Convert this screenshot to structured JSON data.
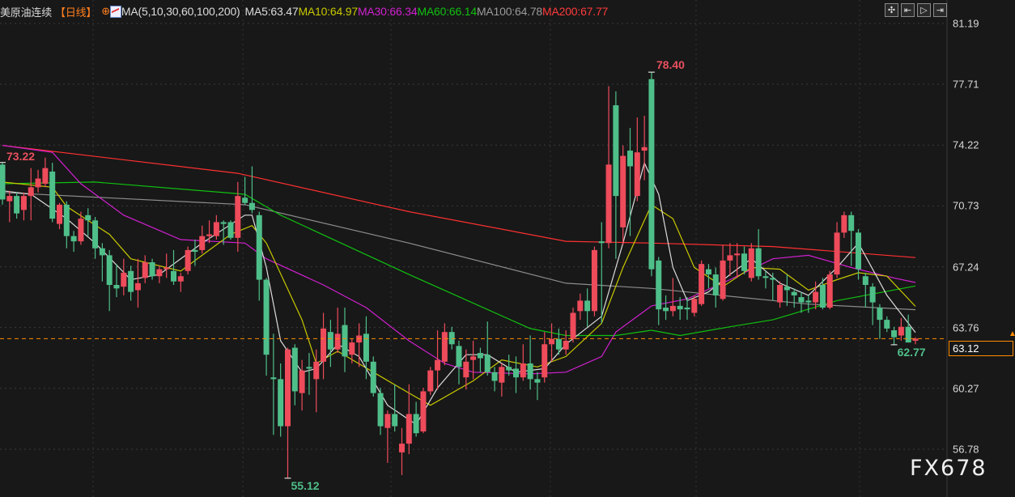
{
  "header": {
    "symbol": "美原油连续",
    "period": "【日线】",
    "crosshair_icon": "circle-plus-icon",
    "ma_icon": "ma-chart-icon",
    "ma_params": "MA(5,10,30,60,100,200)",
    "ma_values": [
      {
        "label": "MA5:63.47",
        "color": "#dcdcdc"
      },
      {
        "label": "MA10:64.97",
        "color": "#c8c800"
      },
      {
        "label": "MA30:66.34",
        "color": "#d020d0"
      },
      {
        "label": "MA60:66.14",
        "color": "#10c010"
      },
      {
        "label": "MA100:64.78",
        "color": "#9a9a9a"
      },
      {
        "label": "MA200:67.77",
        "color": "#ff3a3a"
      }
    ]
  },
  "toolbar": [
    {
      "name": "crosshair-icon",
      "glyph": "✣"
    },
    {
      "name": "zoom-range-icon",
      "glyph": "⇤"
    },
    {
      "name": "play-icon",
      "glyph": "▷"
    },
    {
      "name": "exit-icon",
      "glyph": "⇥"
    }
  ],
  "watermark": "FX678",
  "colors": {
    "up": "#ee4b5b",
    "down": "#4fbf8a",
    "last_price": "#ff8c00",
    "background": "#181818"
  },
  "chart_data": {
    "type": "candlestick",
    "ylim": [
      56.78,
      81.19
    ],
    "y_ticks": [
      "81.19",
      "77.71",
      "74.22",
      "70.73",
      "67.24",
      "63.76",
      "60.27",
      "56.78"
    ],
    "last_price": "63.12",
    "annotations": [
      {
        "label": "73.22",
        "kind": "high",
        "candle": 0
      },
      {
        "label": "78.40",
        "kind": "high",
        "candle": 91
      },
      {
        "label": "55.12",
        "kind": "low",
        "candle": 40
      },
      {
        "label": "62.77",
        "kind": "low",
        "candle": 125
      }
    ],
    "ohlc": [
      [
        73.1,
        73.22,
        70.8,
        71.1
      ],
      [
        71.0,
        71.6,
        69.8,
        71.3
      ],
      [
        71.3,
        71.5,
        70.0,
        70.3
      ],
      [
        70.5,
        71.5,
        69.9,
        71.3
      ],
      [
        71.3,
        72.9,
        69.9,
        71.8
      ],
      [
        71.8,
        72.8,
        71.5,
        72.3
      ],
      [
        72.0,
        73.5,
        71.8,
        72.9
      ],
      [
        72.7,
        73.2,
        69.8,
        70.0
      ],
      [
        69.7,
        70.9,
        69.4,
        70.8
      ],
      [
        70.8,
        71.0,
        68.3,
        69.0
      ],
      [
        69.0,
        69.3,
        68.1,
        68.7
      ],
      [
        68.7,
        70.4,
        68.5,
        70.0
      ],
      [
        70.2,
        70.6,
        69.0,
        69.9
      ],
      [
        69.9,
        70.1,
        67.7,
        68.3
      ],
      [
        68.3,
        68.6,
        66.4,
        67.9
      ],
      [
        67.9,
        68.2,
        64.7,
        66.2
      ],
      [
        66.2,
        67.4,
        65.5,
        66.0
      ],
      [
        66.1,
        67.7,
        65.6,
        66.9
      ],
      [
        67.0,
        67.3,
        65.3,
        65.8
      ],
      [
        65.9,
        67.7,
        64.9,
        66.3
      ],
      [
        66.6,
        67.9,
        66.3,
        67.5
      ],
      [
        67.5,
        67.7,
        66.5,
        66.7
      ],
      [
        66.7,
        67.3,
        66.3,
        67.1
      ],
      [
        67.1,
        68.0,
        66.6,
        67.2
      ],
      [
        67.0,
        68.2,
        66.2,
        66.4
      ],
      [
        66.4,
        66.9,
        65.8,
        66.7
      ],
      [
        67.0,
        68.4,
        66.8,
        68.2
      ],
      [
        68.2,
        68.8,
        67.3,
        68.1
      ],
      [
        68.2,
        69.6,
        68.0,
        69.0
      ],
      [
        69.0,
        69.9,
        68.6,
        69.1
      ],
      [
        69.0,
        70.2,
        68.8,
        69.8
      ],
      [
        69.8,
        69.9,
        68.5,
        69.7
      ],
      [
        69.8,
        69.9,
        68.8,
        68.9
      ],
      [
        68.9,
        72.1,
        68.1,
        71.3
      ],
      [
        71.2,
        72.4,
        70.8,
        70.9
      ],
      [
        70.9,
        73.0,
        70.3,
        70.5
      ],
      [
        70.2,
        70.4,
        65.3,
        66.5
      ],
      [
        66.5,
        66.6,
        61.0,
        62.2
      ],
      [
        60.9,
        63.4,
        57.6,
        60.8
      ],
      [
        60.8,
        61.7,
        57.5,
        58.1
      ],
      [
        58.1,
        62.6,
        55.12,
        62.5
      ],
      [
        62.6,
        62.8,
        59.3,
        60.1
      ],
      [
        60.0,
        61.9,
        59.0,
        61.3
      ],
      [
        61.5,
        62.3,
        59.9,
        61.4
      ],
      [
        60.8,
        62.5,
        58.9,
        61.8
      ],
      [
        61.8,
        64.6,
        60.8,
        63.7
      ],
      [
        63.5,
        64.2,
        61.5,
        62.5
      ],
      [
        62.5,
        64.9,
        62.3,
        63.4
      ],
      [
        63.9,
        64.9,
        61.2,
        62.1
      ],
      [
        62.2,
        63.1,
        61.7,
        62.9
      ],
      [
        62.9,
        64.0,
        61.5,
        63.3
      ],
      [
        63.4,
        64.4,
        60.8,
        61.8
      ],
      [
        61.8,
        62.1,
        59.8,
        60.0
      ],
      [
        60.0,
        60.3,
        57.6,
        58.1
      ],
      [
        58.0,
        59.0,
        56.0,
        58.8
      ],
      [
        58.8,
        60.5,
        57.8,
        58.1
      ],
      [
        56.6,
        58.0,
        55.3,
        57.1
      ],
      [
        57.1,
        60.5,
        56.5,
        58.8
      ],
      [
        58.8,
        59.5,
        57.5,
        57.7
      ],
      [
        57.8,
        60.3,
        57.7,
        60.1
      ],
      [
        60.1,
        61.5,
        59.9,
        61.3
      ],
      [
        61.3,
        63.6,
        60.2,
        61.9
      ],
      [
        61.8,
        64.0,
        61.6,
        63.5
      ],
      [
        63.5,
        63.8,
        62.5,
        62.8
      ],
      [
        62.7,
        63.0,
        60.5,
        61.5
      ],
      [
        60.9,
        62.5,
        60.2,
        61.8
      ],
      [
        61.9,
        63.0,
        60.8,
        62.1
      ],
      [
        62.3,
        62.6,
        61.2,
        62.0
      ],
      [
        62.2,
        64.1,
        61.0,
        61.2
      ],
      [
        61.2,
        61.5,
        60.1,
        60.7
      ],
      [
        60.6,
        61.7,
        59.8,
        61.5
      ],
      [
        61.5,
        62.2,
        61.0,
        61.3
      ],
      [
        61.4,
        62.1,
        60.0,
        60.9
      ],
      [
        60.9,
        62.8,
        60.7,
        61.7
      ],
      [
        61.7,
        63.3,
        60.2,
        60.8
      ],
      [
        60.8,
        61.2,
        59.6,
        60.6
      ],
      [
        60.9,
        63.5,
        60.6,
        62.8
      ],
      [
        62.8,
        64.0,
        61.8,
        63.1
      ],
      [
        63.1,
        63.7,
        62.2,
        62.5
      ],
      [
        62.5,
        63.6,
        62.2,
        63.0
      ],
      [
        63.1,
        64.9,
        62.9,
        64.6
      ],
      [
        64.7,
        65.7,
        64.2,
        65.3
      ],
      [
        65.3,
        66.0,
        63.8,
        64.7
      ],
      [
        64.7,
        68.4,
        64.4,
        68.2
      ],
      [
        68.7,
        69.8,
        64.0,
        68.6
      ],
      [
        68.6,
        77.6,
        68.3,
        73.1
      ],
      [
        76.5,
        77.3,
        67.7,
        71.3
      ],
      [
        69.5,
        74.2,
        68.5,
        73.6
      ],
      [
        73.9,
        75.2,
        69.0,
        73.0
      ],
      [
        71.3,
        75.8,
        71.0,
        73.8
      ],
      [
        73.9,
        75.9,
        72.2,
        74.1
      ],
      [
        78.0,
        78.4,
        66.7,
        67.1
      ],
      [
        67.6,
        67.8,
        63.9,
        64.8
      ],
      [
        64.9,
        65.6,
        64.2,
        64.7
      ],
      [
        64.7,
        66.6,
        64.4,
        65.0
      ],
      [
        65.0,
        65.5,
        64.2,
        64.8
      ],
      [
        64.9,
        65.5,
        64.2,
        64.8
      ],
      [
        64.6,
        65.6,
        64.4,
        65.4
      ],
      [
        65.1,
        67.6,
        65.0,
        67.4
      ],
      [
        67.1,
        67.4,
        66.0,
        66.8
      ],
      [
        66.8,
        67.2,
        64.9,
        65.6
      ],
      [
        65.4,
        68.5,
        65.3,
        67.6
      ],
      [
        67.6,
        68.6,
        66.7,
        67.9
      ],
      [
        67.9,
        68.6,
        66.6,
        68.0
      ],
      [
        68.0,
        68.4,
        66.8,
        67.0
      ],
      [
        66.6,
        68.6,
        66.4,
        68.3
      ],
      [
        68.3,
        69.4,
        66.5,
        66.7
      ],
      [
        66.7,
        67.0,
        66.0,
        66.6
      ],
      [
        66.6,
        66.9,
        65.3,
        66.5
      ],
      [
        65.2,
        66.4,
        64.9,
        66.2
      ],
      [
        66.1,
        66.8,
        65.0,
        65.9
      ],
      [
        65.8,
        66.0,
        64.9,
        65.6
      ],
      [
        65.5,
        65.8,
        64.6,
        65.2
      ],
      [
        65.3,
        65.6,
        64.6,
        65.2
      ],
      [
        65.2,
        66.4,
        64.8,
        65.8
      ],
      [
        66.2,
        66.6,
        64.8,
        64.9
      ],
      [
        64.9,
        67.0,
        64.8,
        66.8
      ],
      [
        66.8,
        69.8,
        66.6,
        69.2
      ],
      [
        69.2,
        70.4,
        68.9,
        70.2
      ],
      [
        70.2,
        70.4,
        67.3,
        69.3
      ],
      [
        69.2,
        69.4,
        66.5,
        67.1
      ],
      [
        66.7,
        66.9,
        64.9,
        66.2
      ],
      [
        66.1,
        66.3,
        63.9,
        65.2
      ],
      [
        64.9,
        65.1,
        63.1,
        64.2
      ],
      [
        64.2,
        64.4,
        63.5,
        63.7
      ],
      [
        63.6,
        63.8,
        62.77,
        63.2
      ],
      [
        63.3,
        64.3,
        63.0,
        63.8
      ],
      [
        63.8,
        64.5,
        62.9,
        62.9
      ],
      [
        63.0,
        63.2,
        62.8,
        63.12
      ]
    ],
    "moving_averages": [
      {
        "name": "MA200",
        "color": "#ff3030",
        "points": [
          [
            0,
            74.2
          ],
          [
            33,
            72.6
          ],
          [
            57,
            70.4
          ],
          [
            79,
            68.7
          ],
          [
            91,
            68.6
          ],
          [
            108,
            68.4
          ],
          [
            128,
            67.77
          ]
        ]
      },
      {
        "name": "MA100",
        "color": "#8c8c8c",
        "points": [
          [
            0,
            71.5
          ],
          [
            34,
            70.8
          ],
          [
            57,
            68.6
          ],
          [
            79,
            66.3
          ],
          [
            91,
            66.0
          ],
          [
            113,
            65.1
          ],
          [
            128,
            64.78
          ]
        ]
      },
      {
        "name": "MA60",
        "color": "#10c010",
        "points": [
          [
            0,
            72.0
          ],
          [
            13,
            72.1
          ],
          [
            34,
            71.4
          ],
          [
            39,
            70.2
          ],
          [
            57,
            66.8
          ],
          [
            74,
            63.7
          ],
          [
            79,
            63.3
          ],
          [
            86,
            63.3
          ],
          [
            91,
            63.6
          ],
          [
            95,
            63.3
          ],
          [
            102,
            63.8
          ],
          [
            108,
            64.2
          ],
          [
            117,
            65.3
          ],
          [
            128,
            66.14
          ]
        ]
      },
      {
        "name": "MA30",
        "color": "#d020d0",
        "points": [
          [
            0,
            74.2
          ],
          [
            7,
            73.8
          ],
          [
            11,
            72.0
          ],
          [
            17,
            70.2
          ],
          [
            25,
            68.8
          ],
          [
            34,
            68.6
          ],
          [
            37,
            67.7
          ],
          [
            45,
            66.2
          ],
          [
            51,
            64.9
          ],
          [
            57,
            63.0
          ],
          [
            62,
            61.7
          ],
          [
            66,
            61.2
          ],
          [
            74,
            61.1
          ],
          [
            79,
            61.2
          ],
          [
            84,
            62.1
          ],
          [
            86,
            63.5
          ],
          [
            91,
            65.0
          ],
          [
            96,
            65.4
          ],
          [
            102,
            66.5
          ],
          [
            108,
            67.7
          ],
          [
            113,
            67.9
          ],
          [
            119,
            67.2
          ],
          [
            125,
            66.6
          ],
          [
            128,
            66.34
          ]
        ]
      },
      {
        "name": "MA10",
        "color": "#c8c800",
        "points": [
          [
            0,
            72.1
          ],
          [
            7,
            71.8
          ],
          [
            9,
            70.7
          ],
          [
            15,
            69.1
          ],
          [
            18,
            67.7
          ],
          [
            25,
            67.0
          ],
          [
            32,
            69.1
          ],
          [
            35,
            69.6
          ],
          [
            37,
            68.6
          ],
          [
            42,
            64.2
          ],
          [
            44,
            61.7
          ],
          [
            47,
            62.4
          ],
          [
            52,
            61.2
          ],
          [
            57,
            60.0
          ],
          [
            60,
            59.3
          ],
          [
            66,
            60.7
          ],
          [
            70,
            61.9
          ],
          [
            75,
            61.5
          ],
          [
            79,
            62.1
          ],
          [
            84,
            64.0
          ],
          [
            87,
            67.2
          ],
          [
            91,
            70.8
          ],
          [
            94,
            70.0
          ],
          [
            97,
            67.2
          ],
          [
            101,
            66.1
          ],
          [
            105,
            67.2
          ],
          [
            109,
            67.1
          ],
          [
            113,
            65.9
          ],
          [
            117,
            66.5
          ],
          [
            120,
            66.9
          ],
          [
            124,
            66.7
          ],
          [
            128,
            64.97
          ]
        ]
      },
      {
        "name": "MA5",
        "color": "#dcdcdc",
        "points": [
          [
            0,
            71.6
          ],
          [
            4,
            71.4
          ],
          [
            9,
            70.0
          ],
          [
            13,
            68.6
          ],
          [
            18,
            66.5
          ],
          [
            22,
            66.8
          ],
          [
            28,
            68.6
          ],
          [
            34,
            70.2
          ],
          [
            35,
            70.2
          ],
          [
            37,
            67.2
          ],
          [
            39,
            63.0
          ],
          [
            42,
            61.2
          ],
          [
            44,
            61.4
          ],
          [
            47,
            62.8
          ],
          [
            50,
            62.1
          ],
          [
            54,
            59.3
          ],
          [
            58,
            58.2
          ],
          [
            61,
            60.3
          ],
          [
            65,
            62.2
          ],
          [
            68,
            62.2
          ],
          [
            72,
            61.2
          ],
          [
            76,
            61.4
          ],
          [
            79,
            62.8
          ],
          [
            84,
            64.4
          ],
          [
            87,
            68.6
          ],
          [
            90,
            73.2
          ],
          [
            92,
            71.4
          ],
          [
            94,
            67.2
          ],
          [
            96,
            65.3
          ],
          [
            99,
            65.8
          ],
          [
            102,
            66.8
          ],
          [
            105,
            67.7
          ],
          [
            109,
            66.3
          ],
          [
            113,
            65.6
          ],
          [
            117,
            67.2
          ],
          [
            120,
            68.6
          ],
          [
            124,
            65.6
          ],
          [
            128,
            63.47
          ]
        ]
      }
    ]
  }
}
